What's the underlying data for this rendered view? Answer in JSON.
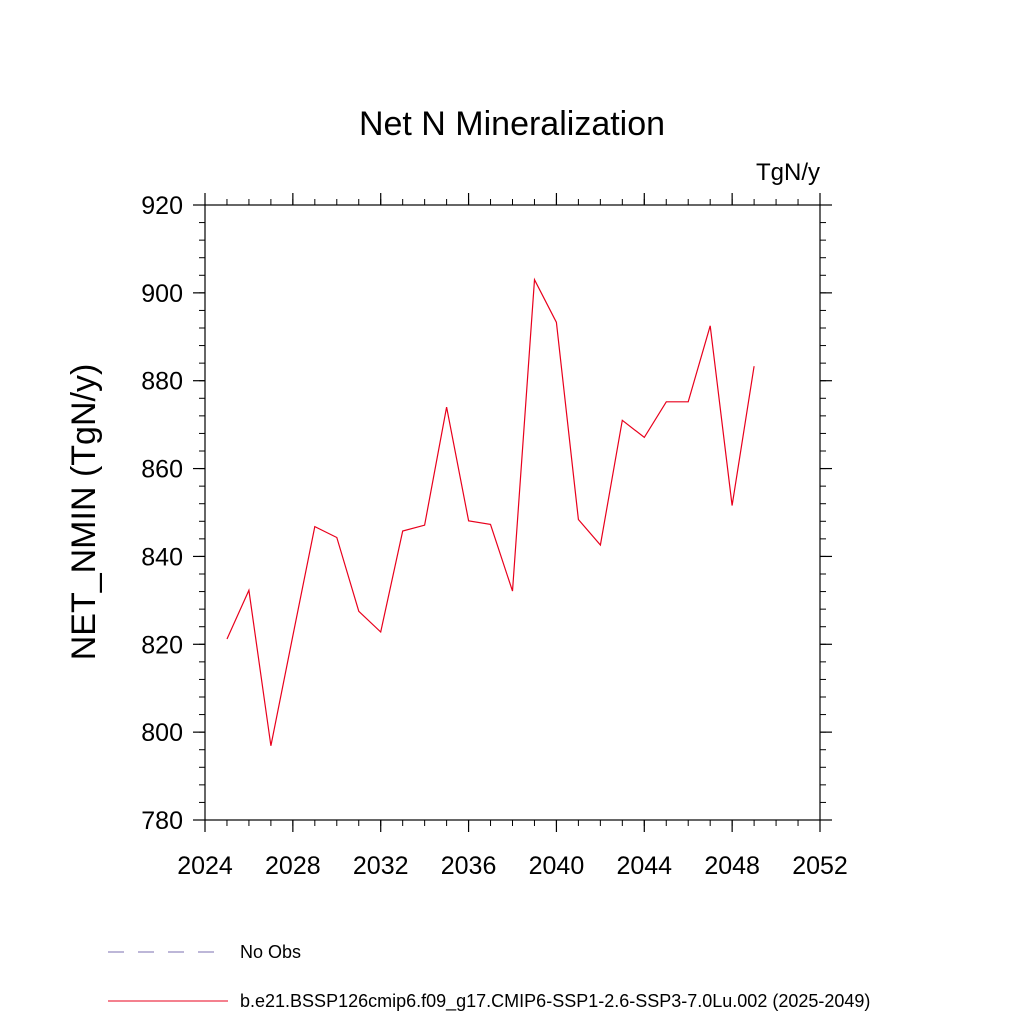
{
  "chart_data": {
    "type": "line",
    "title": "Net N Mineralization",
    "units": "TgN/y",
    "ylabel": "NET_NMIN  (TgN/y)",
    "xlabel": "",
    "xlim": [
      2024,
      2052
    ],
    "ylim": [
      780,
      920
    ],
    "xticks": [
      2024,
      2028,
      2032,
      2036,
      2040,
      2044,
      2048,
      2052
    ],
    "yticks": [
      780,
      800,
      820,
      840,
      860,
      880,
      900,
      920
    ],
    "grid": false,
    "legend_position": "bottom",
    "series": [
      {
        "name": "b.e21.BSSP126cmip6.f09_g17.CMIP6-SSP1-2.6-SSP3-7.0Lu.002 (2025-2049)",
        "color": "#e8001c",
        "style": "solid",
        "x": [
          2025,
          2026,
          2027,
          2028,
          2029,
          2030,
          2031,
          2032,
          2033,
          2034,
          2035,
          2036,
          2037,
          2038,
          2039,
          2040,
          2041,
          2042,
          2043,
          2044,
          2045,
          2046,
          2047,
          2048,
          2049
        ],
        "y": [
          821.2,
          832.3,
          796.9,
          822.0,
          846.8,
          844.3,
          827.5,
          822.8,
          845.8,
          847.1,
          874.0,
          848.1,
          847.3,
          832.1,
          903.0,
          893.3,
          848.4,
          842.6,
          871.0,
          867.1,
          875.2,
          875.2,
          892.5,
          851.6,
          883.3
        ]
      }
    ],
    "legend": [
      {
        "label": "No Obs",
        "color": "#7b6fb0",
        "style": "dashed"
      },
      {
        "label": "b.e21.BSSP126cmip6.f09_g17.CMIP6-SSP1-2.6-SSP3-7.0Lu.002 (2025-2049)",
        "color": "#e8001c",
        "style": "solid"
      }
    ]
  }
}
